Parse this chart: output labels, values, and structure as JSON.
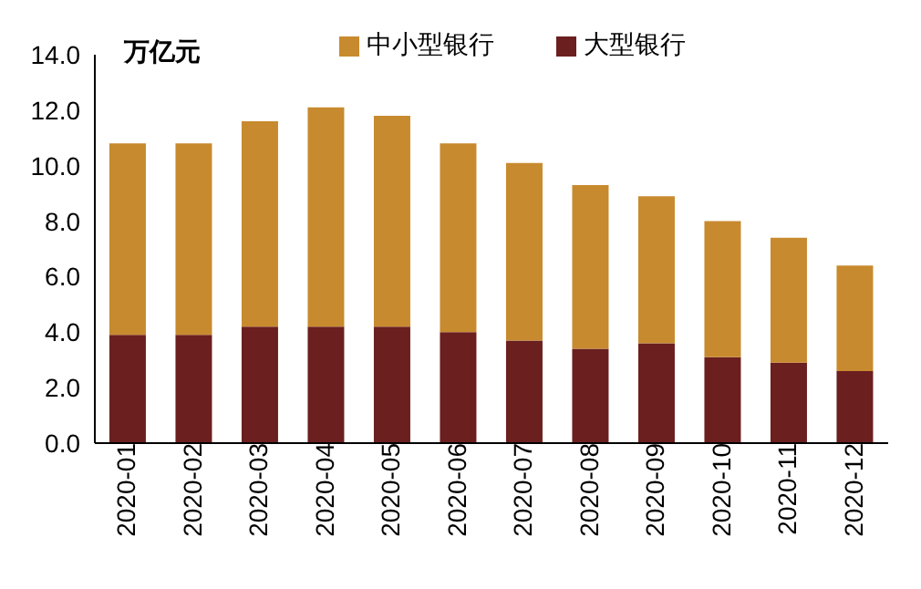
{
  "chart_data": {
    "type": "bar",
    "stacked": true,
    "ylabel": "万亿元",
    "categories": [
      "2020-01",
      "2020-02",
      "2020-03",
      "2020-04",
      "2020-05",
      "2020-06",
      "2020-07",
      "2020-08",
      "2020-09",
      "2020-10",
      "2020-11",
      "2020-12"
    ],
    "series": [
      {
        "name": "大型银行",
        "color": "#6b1f1f",
        "values": [
          3.9,
          3.9,
          4.2,
          4.2,
          4.2,
          4.0,
          3.7,
          3.4,
          3.6,
          3.1,
          2.9,
          2.6
        ]
      },
      {
        "name": "中小型银行",
        "color": "#c88a2e",
        "values": [
          6.9,
          6.9,
          7.4,
          7.9,
          7.6,
          6.8,
          6.4,
          5.9,
          5.3,
          4.9,
          4.5,
          3.8
        ]
      }
    ],
    "ylim": [
      0,
      14
    ],
    "yticks": [
      {
        "value": 0,
        "label": "0.0"
      },
      {
        "value": 2,
        "label": "2.0"
      },
      {
        "value": 4,
        "label": "4.0"
      },
      {
        "value": 6,
        "label": "6.0"
      },
      {
        "value": 8,
        "label": "8.0"
      },
      {
        "value": 10,
        "label": "10.0"
      },
      {
        "value": 12,
        "label": "12.0"
      },
      {
        "value": 14,
        "label": "14.0"
      }
    ],
    "grid": false,
    "legend": "top"
  }
}
